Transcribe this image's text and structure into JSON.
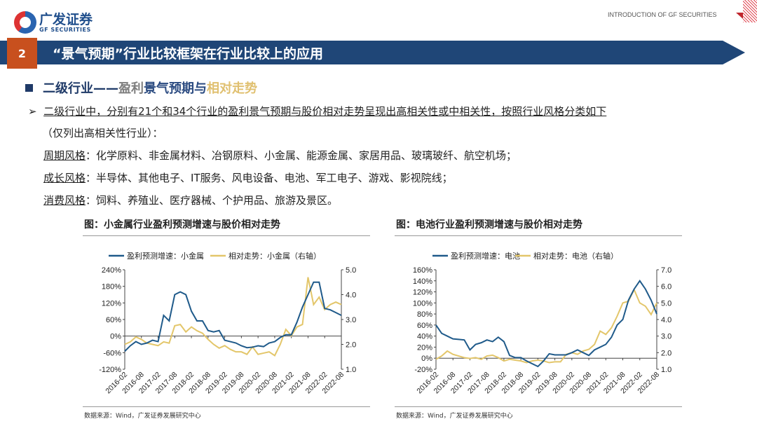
{
  "header": {
    "logo_cn": "广发证券",
    "logo_en": "GF SECURITIES",
    "intro": "INTRODUCTION  OF GF SECURITIES"
  },
  "section": {
    "number": "2",
    "title": "“景气预期”行业比较框架在行业比较上的应用"
  },
  "subtitle": {
    "p1": "二级行业——",
    "p2": "盈利",
    "p3": "景气预期与",
    "p4": "相对走势"
  },
  "body": {
    "line1": "二级行业中，分别有21个和34个行业的盈利景气预期与股价相对走势呈现出高相关性或中相关性，按照行业风格分类如下",
    "line2": "（仅列出高相关性行业）：",
    "styles": [
      {
        "label": "周期风格",
        "items": "：化学原料、非金属材料、冶钢原料、小金属、能源金属、家居用品、玻璃玻纤、航空机场；"
      },
      {
        "label": "成长风格",
        "items": "：半导体、其他电子、IT服务、风电设备、电池、军工电子、游戏、影视院线；"
      },
      {
        "label": "消费风格",
        "items": "：饲料、养殖业、医疗器械、个护用品、旅游及景区。"
      }
    ]
  },
  "colors": {
    "blue": "#1f5a8a",
    "yellow": "#e3c66a",
    "banner": "#1f4677",
    "accent": "#c8501e"
  },
  "chart_data": [
    {
      "type": "line",
      "title": "图：小金属行业盈利预测增速与股价相对走势",
      "source": "数据来源：Wind，广发证券发展研究中心",
      "x_ticks": [
        "2016-02",
        "2016-08",
        "2017-02",
        "2017-08",
        "2018-02",
        "2018-08",
        "2019-02",
        "2019-08",
        "2020-02",
        "2020-08",
        "2021-02",
        "2021-08",
        "2022-02",
        "2022-08"
      ],
      "left_ticks": [
        "240%",
        "180%",
        "120%",
        "60%",
        "0%",
        "-60%",
        "-120%"
      ],
      "right_ticks": [
        "5.0",
        "4.0",
        "3.0",
        "2.0",
        "1.0"
      ],
      "ylim": [
        -120,
        240
      ],
      "y2lim": [
        1.0,
        5.0
      ],
      "series": [
        {
          "name": "盈利预测增速：小金属",
          "axis": "left",
          "values": [
            -55,
            -35,
            -20,
            -30,
            -25,
            -15,
            -20,
            75,
            55,
            150,
            160,
            150,
            90,
            55,
            55,
            20,
            15,
            20,
            -15,
            -20,
            -25,
            -35,
            -42,
            -40,
            -35,
            -38,
            -25,
            -20,
            -5,
            5,
            5,
            50,
            105,
            150,
            195,
            195,
            100,
            95,
            85,
            75
          ]
        },
        {
          "name": "相对走势：小金属（右轴）",
          "axis": "right",
          "values": [
            2.0,
            2.1,
            2.3,
            2.2,
            2.05,
            2.0,
            1.95,
            2.1,
            2.05,
            2.75,
            2.8,
            2.5,
            2.7,
            2.55,
            2.45,
            2.2,
            2.0,
            1.85,
            1.95,
            1.8,
            1.7,
            1.7,
            1.6,
            1.9,
            1.6,
            1.65,
            1.7,
            1.55,
            2.0,
            2.6,
            2.35,
            2.7,
            2.8,
            4.7,
            3.6,
            3.9,
            3.4,
            3.6,
            3.7,
            3.6
          ]
        }
      ]
    },
    {
      "type": "line",
      "title": "图：电池行业盈利预测增速与股价相对走势",
      "source": "数据来源：Wind，广发证券发展研究中心",
      "x_ticks": [
        "2016-02",
        "2016-08",
        "2017-02",
        "2017-08",
        "2018-02",
        "2018-08",
        "2019-02",
        "2019-08",
        "2020-02",
        "2020-08",
        "2021-02",
        "2021-08",
        "2022-02",
        "2022-08"
      ],
      "left_ticks": [
        "160%",
        "140%",
        "120%",
        "100%",
        "80%",
        "60%",
        "40%",
        "20%",
        "0%",
        "-20%"
      ],
      "right_ticks": [
        "7.0",
        "6.0",
        "5.0",
        "4.0",
        "3.0",
        "2.0",
        "1.0"
      ],
      "ylim": [
        -20,
        160
      ],
      "y2lim": [
        1.0,
        7.0
      ],
      "series": [
        {
          "name": "盈利预测增速：电池",
          "axis": "left",
          "values": [
            60,
            45,
            40,
            35,
            34,
            33,
            15,
            25,
            28,
            33,
            30,
            38,
            30,
            5,
            1,
            1,
            -5,
            -10,
            -15,
            -5,
            8,
            6,
            6,
            6,
            10,
            15,
            10,
            5,
            15,
            20,
            25,
            38,
            60,
            70,
            105,
            125,
            140,
            125,
            105,
            80
          ]
        },
        {
          "name": "相对走势：电池（右轴）",
          "axis": "right",
          "values": [
            1.6,
            1.8,
            2.1,
            1.9,
            1.8,
            1.7,
            1.65,
            1.7,
            1.6,
            1.8,
            1.85,
            1.7,
            1.5,
            1.6,
            1.55,
            1.5,
            1.4,
            1.5,
            1.55,
            1.5,
            1.4,
            1.45,
            1.45,
            1.9,
            2.0,
            1.9,
            2.1,
            2.2,
            2.5,
            3.3,
            3.1,
            3.5,
            4.2,
            5.0,
            5.1,
            5.8,
            5.0,
            4.8,
            4.3,
            5.0
          ]
        }
      ]
    }
  ]
}
